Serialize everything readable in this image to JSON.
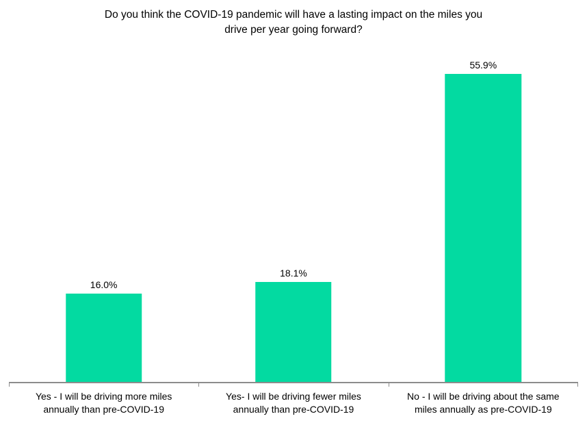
{
  "chart_data": {
    "type": "bar",
    "title": "Do you think the COVID-19 pandemic will have a lasting impact on the miles you drive per year going forward?",
    "title_lines": [
      "Do you think the COVID-19 pandemic will have a lasting impact on the miles you",
      "drive per year going forward?"
    ],
    "categories": [
      "Yes - I will be driving more miles annually than pre-COVID-19",
      "Yes- I will be driving fewer miles annually than pre-COVID-19",
      "No - I will be driving about the same miles annually as pre-COVID-19"
    ],
    "category_lines": [
      [
        "Yes - I will be driving more miles",
        "annually than pre-COVID-19"
      ],
      [
        "Yes- I will be driving fewer miles",
        "annually than pre-COVID-19"
      ],
      [
        "No - I will be driving about the same",
        "miles annually as pre-COVID-19"
      ]
    ],
    "values": [
      16.0,
      18.1,
      55.9
    ],
    "value_labels": [
      "16.0%",
      "18.1%",
      "55.9%"
    ],
    "xlabel": "",
    "ylabel": "",
    "ylim": [
      0,
      60
    ],
    "grid": false,
    "legend": false,
    "tick_positions_pct": [
      0,
      33.3333,
      66.6667,
      100
    ],
    "colors": {
      "bar": "#03DAA1",
      "axis": "#8C8C8C",
      "text": "#000000",
      "background": "#FFFFFF"
    }
  }
}
